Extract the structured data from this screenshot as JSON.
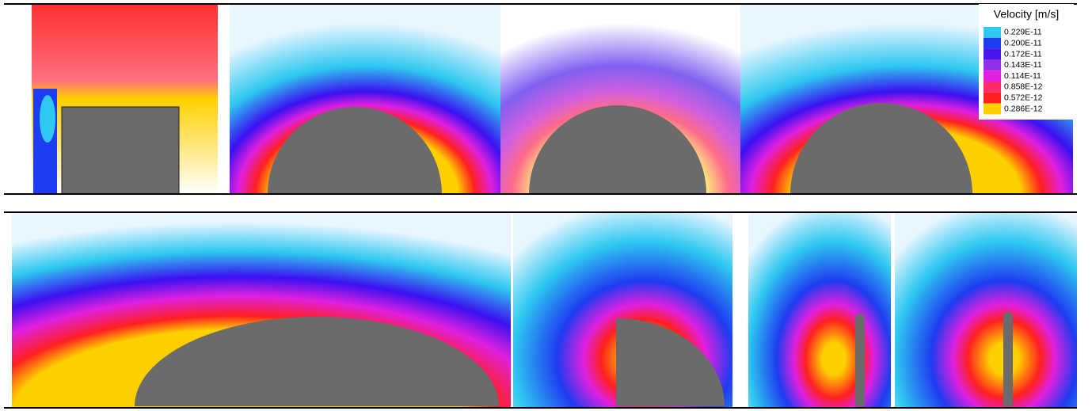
{
  "legend": {
    "title": "Velocity [m/s]",
    "labels": [
      "0.229E-11",
      "0.200E-11",
      "0.172E-11",
      "0.143E-11",
      "0.114E-11",
      "0.858E-12",
      "0.572E-12",
      "0.286E-12"
    ],
    "colors": [
      "#2ec8f0",
      "#1e3cf0",
      "#4a14ee",
      "#9030e8",
      "#e020e0",
      "#ff2a6a",
      "#ff2020",
      "#ffd000"
    ]
  }
}
